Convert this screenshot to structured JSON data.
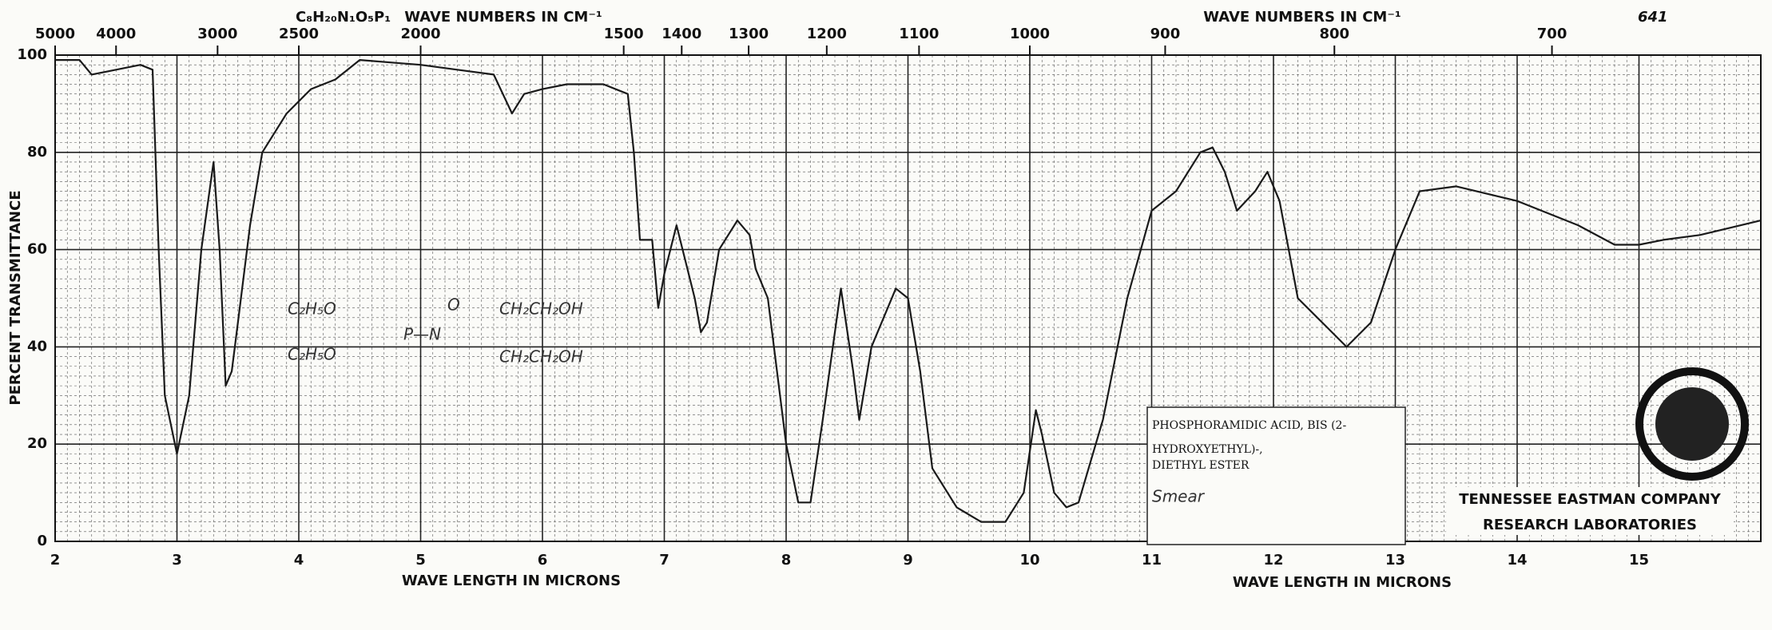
{
  "chart_data": {
    "type": "line",
    "title": "WAVE NUMBERS IN CM⁻¹",
    "title_right": "WAVE NUMBERS IN CM⁻¹",
    "formula": "C₈H₂₀N₁O₅P₁",
    "sheet_number": "641",
    "x_label": "WAVE LENGTH IN MICRONS",
    "x_label_right": "WAVE LENGTH IN MICRONS",
    "y_label": "PERCENT TRANSMITTANCE",
    "compound_lines": [
      "PHOSPHORAMIDIC ACID, BIS (2-",
      "HYDROXYETHYL)-,",
      "DIETHYL ESTER"
    ],
    "sample": "Smear",
    "company": "TENNESSEE EASTMAN COMPANY",
    "laboratory": "RESEARCH LABORATORIES",
    "annotations": [
      "C₂H₅O",
      "C₂H₅O",
      "O",
      "P—N",
      "CH₂CH₂OH",
      "CH₂CH₂OH"
    ],
    "color": "#1a1a1a",
    "grid": true,
    "xlim": [
      2,
      16
    ],
    "xticks": [
      2,
      3,
      4,
      5,
      6,
      7,
      8,
      9,
      10,
      11,
      12,
      13,
      14,
      15
    ],
    "x2ticks": [
      5000,
      4000,
      3000,
      2500,
      2000,
      1500,
      1400,
      1300,
      1200,
      1100,
      1000,
      900,
      800,
      700
    ],
    "ylim": [
      0,
      100
    ],
    "yticks": [
      0,
      20,
      40,
      60,
      80,
      100
    ],
    "x": [
      2.0,
      2.2,
      2.3,
      2.5,
      2.7,
      2.8,
      2.85,
      2.9,
      3.0,
      3.1,
      3.2,
      3.3,
      3.35,
      3.4,
      3.45,
      3.5,
      3.6,
      3.7,
      3.9,
      4.1,
      4.3,
      4.5,
      5.0,
      5.3,
      5.6,
      5.75,
      5.85,
      6.0,
      6.2,
      6.5,
      6.7,
      6.75,
      6.8,
      6.9,
      6.95,
      7.0,
      7.1,
      7.2,
      7.25,
      7.3,
      7.35,
      7.45,
      7.6,
      7.7,
      7.75,
      7.85,
      8.0,
      8.1,
      8.2,
      8.3,
      8.45,
      8.55,
      8.6,
      8.7,
      8.9,
      9.0,
      9.1,
      9.2,
      9.4,
      9.6,
      9.8,
      9.95,
      10.05,
      10.1,
      10.2,
      10.3,
      10.4,
      10.6,
      10.8,
      11.0,
      11.2,
      11.4,
      11.5,
      11.6,
      11.7,
      11.85,
      11.95,
      12.05,
      12.2,
      12.4,
      12.6,
      12.8,
      13.0,
      13.2,
      13.5,
      14.0,
      14.5,
      14.8,
      15.0,
      15.2,
      15.5,
      16.0
    ],
    "values": [
      99,
      99,
      96,
      97,
      98,
      97,
      60,
      30,
      18,
      30,
      60,
      78,
      60,
      32,
      35,
      45,
      65,
      80,
      88,
      93,
      95,
      99,
      98,
      97,
      96,
      88,
      92,
      93,
      94,
      94,
      92,
      80,
      62,
      62,
      48,
      55,
      65,
      55,
      50,
      43,
      45,
      60,
      66,
      63,
      56,
      50,
      20,
      8,
      8,
      25,
      52,
      35,
      25,
      40,
      52,
      50,
      35,
      15,
      7,
      4,
      4,
      10,
      27,
      22,
      10,
      7,
      8,
      25,
      50,
      68,
      72,
      80,
      81,
      76,
      68,
      72,
      76,
      70,
      50,
      45,
      40,
      45,
      60,
      72,
      73,
      70,
      65,
      61,
      61,
      62,
      63,
      66
    ]
  }
}
